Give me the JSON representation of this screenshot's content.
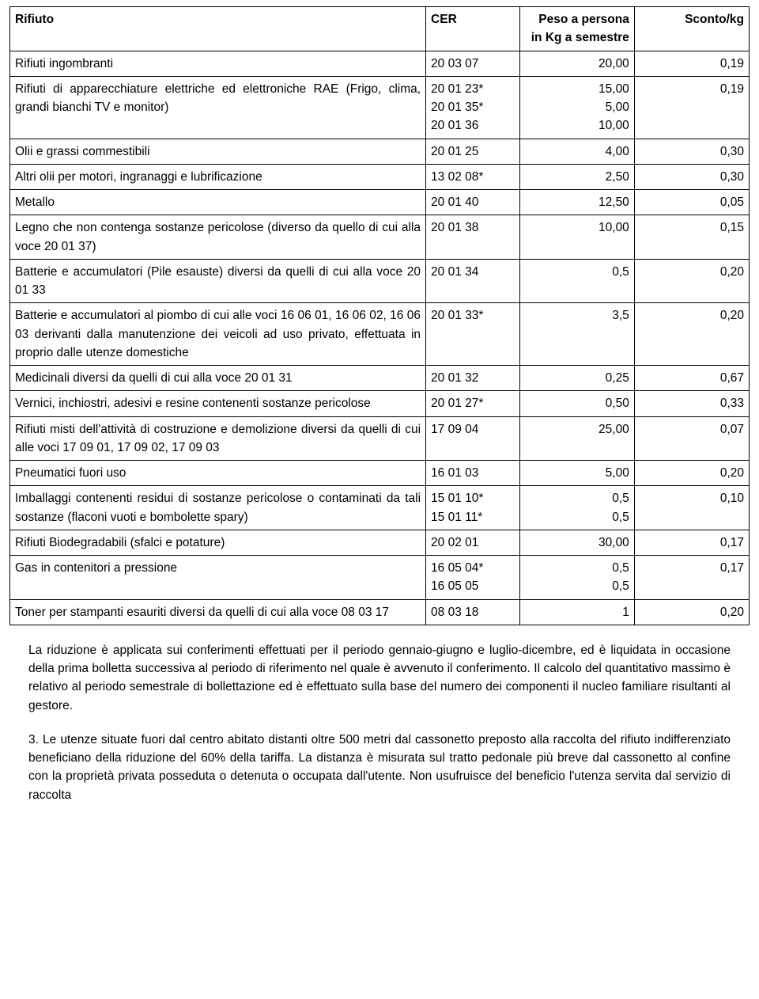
{
  "table": {
    "headers": {
      "rifiuto": "Rifiuto",
      "cer": "CER",
      "peso": "Peso a persona in Kg a semestre",
      "sconto": "Sconto/kg"
    },
    "rows": [
      {
        "rifiuto": "Rifiuti ingombranti",
        "cer": "20 03 07",
        "peso": "20,00",
        "sconto": "0,19"
      },
      {
        "rifiuto": "Rifiuti di apparecchiature elettriche ed elettroniche RAE (Frigo, clima, grandi bianchi TV e monitor)",
        "cer": "20 01 23*\n20 01 35*\n20 01 36",
        "peso": "15,00\n5,00\n10,00",
        "sconto": "0,19"
      },
      {
        "rifiuto": "Olii e grassi commestibili",
        "cer": "20 01 25",
        "peso": "4,00",
        "sconto": "0,30"
      },
      {
        "rifiuto": "Altri olii per motori, ingranaggi e lubrificazione",
        "cer": "13 02 08*",
        "peso": "2,50",
        "sconto": "0,30"
      },
      {
        "rifiuto": "Metallo",
        "cer": "20 01 40",
        "peso": "12,50",
        "sconto": "0,05"
      },
      {
        "rifiuto": "Legno che non contenga sostanze pericolose (diverso da quello di cui alla voce 20 01 37)",
        "cer": "20 01 38",
        "peso": "10,00",
        "sconto": "0,15"
      },
      {
        "rifiuto": "Batterie e accumulatori (Pile esauste) diversi da quelli di cui alla voce 20 01 33",
        "cer": "20 01 34",
        "peso": "0,5",
        "sconto": "0,20"
      },
      {
        "rifiuto": "Batterie e accumulatori al piombo di cui alle voci 16 06 01, 16 06 02, 16 06 03 derivanti dalla manutenzione dei veicoli ad uso privato, effettuata in proprio dalle utenze domestiche",
        "cer": "20 01 33*",
        "peso": "3,5",
        "sconto": "0,20"
      },
      {
        "rifiuto": "Medicinali diversi da quelli di cui alla voce 20 01 31",
        "cer": "20 01 32",
        "peso": "0,25",
        "sconto": "0,67"
      },
      {
        "rifiuto": "Vernici, inchiostri, adesivi e resine contenenti sostanze pericolose",
        "cer": "20 01 27*",
        "peso": "0,50",
        "sconto": "0,33"
      },
      {
        "rifiuto": "Rifiuti misti dell'attività di costruzione e demolizione diversi da quelli di cui alle voci 17 09 01, 17 09 02, 17 09 03",
        "cer": "17 09 04",
        "peso": "25,00",
        "sconto": "0,07"
      },
      {
        "rifiuto": "Pneumatici fuori uso",
        "cer": "16 01 03",
        "peso": "5,00",
        "sconto": "0,20"
      },
      {
        "rifiuto": "Imballaggi contenenti residui di sostanze pericolose o contaminati da tali sostanze (flaconi vuoti e bombolette spary)",
        "cer": "15 01 10*\n15 01 11*",
        "peso": "0,5\n0,5",
        "sconto": "0,10"
      },
      {
        "rifiuto": "Rifiuti Biodegradabili (sfalci e potature)",
        "cer": "20 02 01",
        "peso": "30,00",
        "sconto": "0,17"
      },
      {
        "rifiuto": "Gas in contenitori a pressione",
        "cer": "16 05 04*\n16 05 05",
        "peso": "0,5\n0,5",
        "sconto": "0,17"
      },
      {
        "rifiuto": "Toner per stampanti esauriti diversi da quelli di cui alla voce 08 03 17",
        "cer": "08 03 18",
        "peso": "1",
        "sconto": "0,20"
      }
    ]
  },
  "paragraphs": {
    "p1": "La riduzione è applicata sui conferimenti effettuati per il periodo gennaio-giugno e luglio-dicembre, ed è liquidata in occasione della prima bolletta successiva al periodo di riferimento nel quale è avvenuto il conferimento. Il calcolo del quantitativo massimo è relativo al periodo semestrale di bollettazione ed è effettuato sulla base del numero dei componenti il nucleo familiare risultanti al gestore.",
    "p2": "3. Le utenze situate fuori dal centro abitato distanti oltre 500 metri dal cassonetto preposto alla raccolta del rifiuto indifferenziato beneficiano della riduzione del 60% della tariffa. La distanza è misurata sul tratto pedonale più breve dal cassonetto al confine con la proprietà privata posseduta o detenuta o occupata dall'utente. Non usufruisce del beneficio l'utenza servita dal servizio di raccolta"
  }
}
